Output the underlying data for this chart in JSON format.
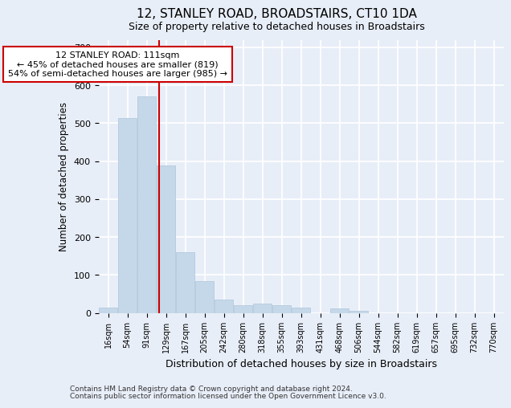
{
  "title1": "12, STANLEY ROAD, BROADSTAIRS, CT10 1DA",
  "title2": "Size of property relative to detached houses in Broadstairs",
  "xlabel": "Distribution of detached houses by size in Broadstairs",
  "ylabel": "Number of detached properties",
  "categories": [
    "16sqm",
    "54sqm",
    "91sqm",
    "129sqm",
    "167sqm",
    "205sqm",
    "242sqm",
    "280sqm",
    "318sqm",
    "355sqm",
    "393sqm",
    "431sqm",
    "468sqm",
    "506sqm",
    "544sqm",
    "582sqm",
    "619sqm",
    "657sqm",
    "695sqm",
    "732sqm",
    "770sqm"
  ],
  "bar_heights": [
    13,
    513,
    570,
    388,
    160,
    83,
    35,
    21,
    24,
    21,
    13,
    0,
    12,
    5,
    0,
    0,
    0,
    0,
    0,
    0,
    0
  ],
  "bar_color": "#c5d8ea",
  "bar_edge_color": "#adc4d8",
  "background_color": "#e8eef8",
  "grid_color": "#ffffff",
  "vline_x": 2.65,
  "vline_color": "#cc0000",
  "annotation_text": "12 STANLEY ROAD: 111sqm\n← 45% of detached houses are smaller (819)\n54% of semi-detached houses are larger (985) →",
  "annotation_box_color": "#ffffff",
  "annotation_box_edge": "#cc0000",
  "ylim": [
    0,
    720
  ],
  "yticks": [
    0,
    100,
    200,
    300,
    400,
    500,
    600,
    700
  ],
  "footer1": "Contains HM Land Registry data © Crown copyright and database right 2024.",
  "footer2": "Contains public sector information licensed under the Open Government Licence v3.0."
}
